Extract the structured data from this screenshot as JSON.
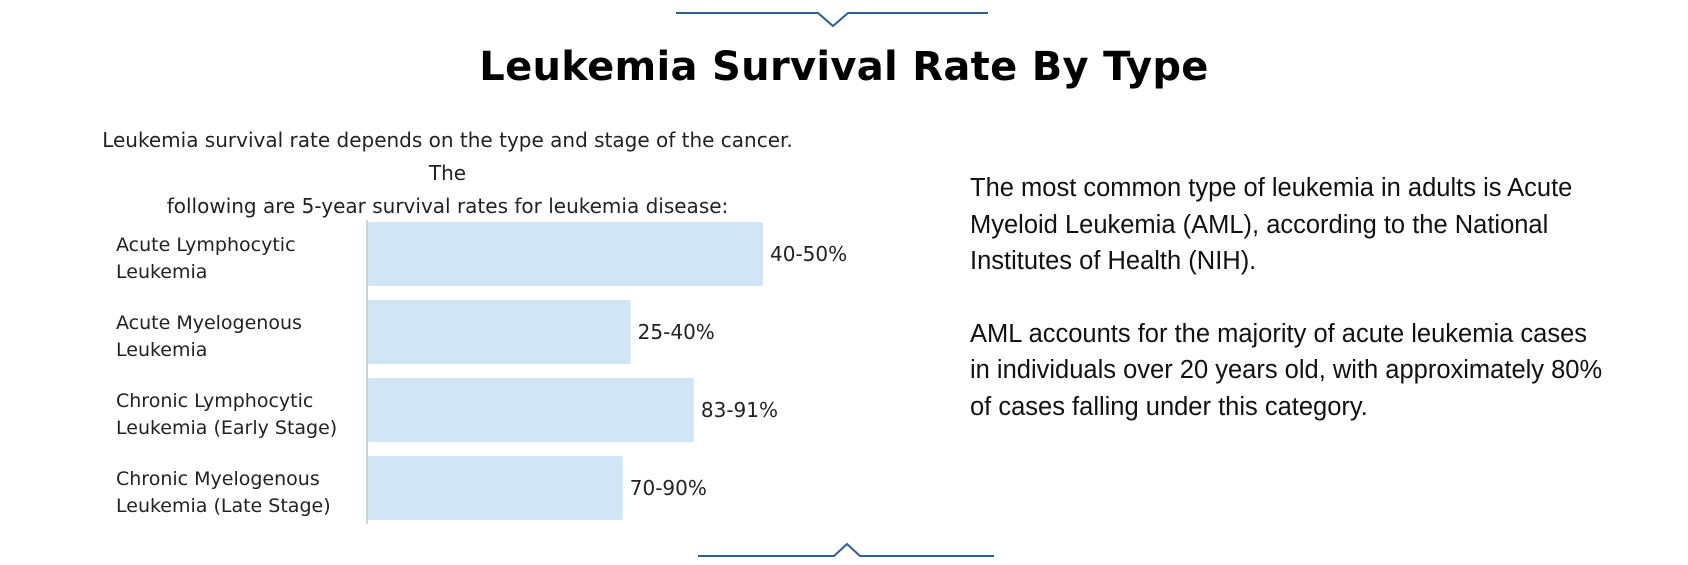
{
  "title": "Leukemia Survival Rate By Type",
  "intro": {
    "line1": "Leukemia survival rate depends on the type and stage of the cancer. The",
    "line2": "following are 5-year survival rates for leukemia disease:"
  },
  "side": {
    "paragraph1": "The most common type of leukemia in adults is Acute Myeloid Leukemia (AML), according to the National Institutes of Health (NIH).",
    "paragraph2": "AML accounts for the majority of acute leukemia cases in individuals over 20 years old, with approximately 80% of cases falling under this category."
  },
  "colors": {
    "bar": "#d0e6f6",
    "axis": "#b9c6d1",
    "divider": "#2f5f8f",
    "title": "#000000"
  },
  "chart_data": {
    "type": "bar",
    "orientation": "horizontal",
    "title": "",
    "xlabel": "",
    "ylabel": "",
    "categories": [
      [
        "Acute Lymphocytic",
        "Leukemia"
      ],
      [
        "Acute Myelogenous",
        "Leukemia"
      ],
      [
        "Chronic Lymphocytic",
        "Leukemia (Early Stage)"
      ],
      [
        "Chronic Myelogenous",
        "Leukemia (Late Stage)"
      ]
    ],
    "value_labels": [
      "40-50%",
      "25-40%",
      "83-91%",
      "70-90%"
    ],
    "values": [
      100,
      66.5,
      82.5,
      64.5
    ],
    "xlim": [
      0,
      100
    ],
    "grid": false,
    "legend": "none",
    "note": "bar lengths are relative visual lengths; printed value labels are the survival ranges"
  }
}
